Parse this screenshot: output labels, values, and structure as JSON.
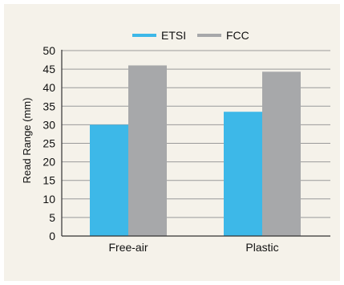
{
  "chart_data": {
    "type": "bar",
    "title": "",
    "xlabel": "",
    "ylabel": "Read Range (mm)",
    "ylim": [
      0,
      50
    ],
    "yticks": [
      0,
      5,
      10,
      15,
      20,
      25,
      30,
      35,
      40,
      45,
      50
    ],
    "categories": [
      "Free-air",
      "Plastic"
    ],
    "series": [
      {
        "name": "ETSI",
        "color": "#3db8e8",
        "values": [
          30,
          33.5
        ]
      },
      {
        "name": "FCC",
        "color": "#a7a8aa",
        "values": [
          46,
          44.3
        ]
      }
    ],
    "grid": true,
    "legend_position": "top-center"
  }
}
